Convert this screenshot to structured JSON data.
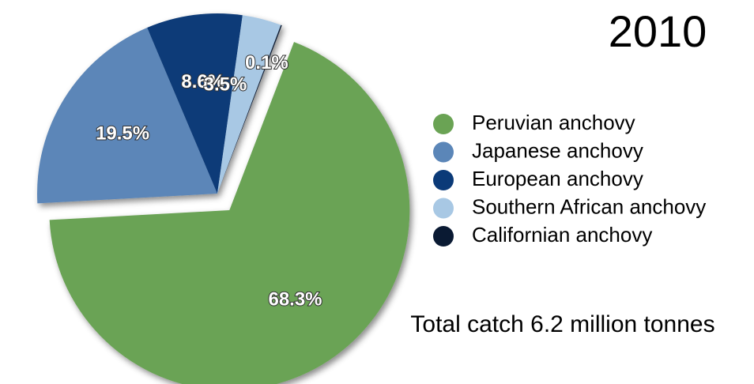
{
  "chart_data": {
    "type": "pie",
    "title": "2010",
    "annotation": "Total catch 6.2 million tonnes",
    "categories": [
      "Peruvian anchovy",
      "Japanese anchovy",
      "European anchovy",
      "Southern African anchovy",
      "Californian anchovy"
    ],
    "values": [
      68.3,
      19.5,
      8.6,
      3.5,
      0.1
    ],
    "value_labels": [
      "68.3%",
      "19.5%",
      "8.6%",
      "3.5%",
      "0.1%"
    ],
    "colors": [
      "#6aa354",
      "#5b86b8",
      "#0b3a78",
      "#a8c8e4",
      "#0a1a33"
    ],
    "legend": "right"
  }
}
